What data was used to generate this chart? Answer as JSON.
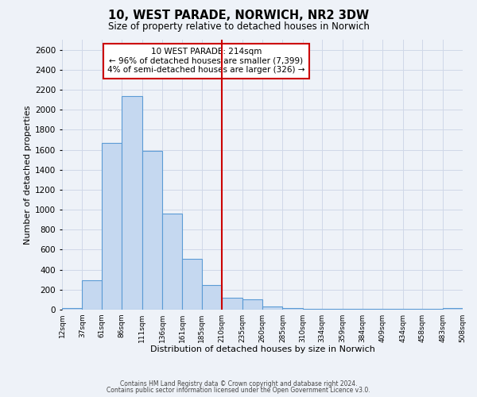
{
  "title": "10, WEST PARADE, NORWICH, NR2 3DW",
  "subtitle": "Size of property relative to detached houses in Norwich",
  "xlabel": "Distribution of detached houses by size in Norwich",
  "ylabel": "Number of detached properties",
  "bar_color": "#c5d8f0",
  "bar_edge_color": "#5b9bd5",
  "grid_color": "#d0d8e8",
  "background_color": "#eef2f8",
  "vline_x": 210,
  "vline_color": "#cc0000",
  "annotation_title": "10 WEST PARADE: 214sqm",
  "annotation_line1": "← 96% of detached houses are smaller (7,399)",
  "annotation_line2": "4% of semi-detached houses are larger (326) →",
  "annotation_box_color": "#ffffff",
  "annotation_border_color": "#cc0000",
  "bin_edges": [
    12,
    37,
    61,
    86,
    111,
    136,
    161,
    185,
    210,
    235,
    260,
    285,
    310,
    334,
    359,
    384,
    409,
    434,
    458,
    483,
    508
  ],
  "bin_labels": [
    "12sqm",
    "37sqm",
    "61sqm",
    "86sqm",
    "111sqm",
    "136sqm",
    "161sqm",
    "185sqm",
    "210sqm",
    "235sqm",
    "260sqm",
    "285sqm",
    "310sqm",
    "334sqm",
    "359sqm",
    "384sqm",
    "409sqm",
    "434sqm",
    "458sqm",
    "483sqm",
    "508sqm"
  ],
  "counts": [
    15,
    295,
    1670,
    2140,
    1590,
    960,
    505,
    250,
    120,
    100,
    35,
    15,
    5,
    5,
    5,
    5,
    5,
    5,
    5,
    15
  ],
  "ylim": [
    0,
    2700
  ],
  "yticks": [
    0,
    200,
    400,
    600,
    800,
    1000,
    1200,
    1400,
    1600,
    1800,
    2000,
    2200,
    2400,
    2600
  ],
  "footer1": "Contains HM Land Registry data © Crown copyright and database right 2024.",
  "footer2": "Contains public sector information licensed under the Open Government Licence v3.0."
}
